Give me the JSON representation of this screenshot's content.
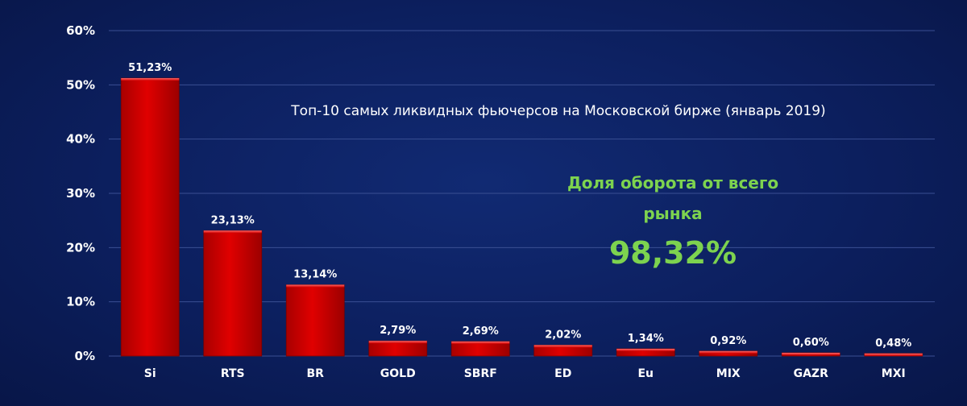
{
  "chart_data": {
    "type": "bar",
    "title": "Топ-10 самых ликвидных фьючерсов на Московской бирже (январь 2019)",
    "categories": [
      "Si",
      "RTS",
      "BR",
      "GOLD",
      "SBRF",
      "ED",
      "Eu",
      "MIX",
      "GAZR",
      "MXI"
    ],
    "values": [
      51.23,
      23.13,
      13.14,
      2.79,
      2.69,
      2.02,
      1.34,
      0.92,
      0.6,
      0.48
    ],
    "data_labels": [
      "51,23%",
      "23,13%",
      "13,14%",
      "2,79%",
      "2,69%",
      "2,02%",
      "1,34%",
      "0,92%",
      "0,60%",
      "0,48%"
    ],
    "y_ticks": [
      "0%",
      "10%",
      "20%",
      "30%",
      "40%",
      "50%",
      "60%"
    ],
    "ylim": [
      0,
      60
    ],
    "grid": true,
    "bar_color": "#d10000",
    "annotation": {
      "label_line1": "Доля оборота от всего",
      "label_line2": "рынка",
      "value": "98,32%",
      "color": "#7dd34f"
    }
  }
}
